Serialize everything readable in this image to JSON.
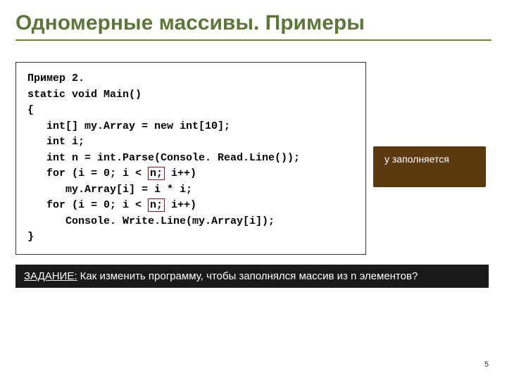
{
  "title": {
    "text": "Одномерные массивы. Примеры",
    "color": "#5d773a",
    "underline_color": "#6b8e23"
  },
  "callout": {
    "text": "у заполняется",
    "background_color": "#5b3a12"
  },
  "code": {
    "line1": "Пример 2.",
    "line2": "static void Main()",
    "line3": "{",
    "line4": "   int[] my.Array = new int[10];",
    "line5": "   int i;",
    "line6": "   int n = int.Parse(Console. Read.Line());",
    "line7a": "   for (i = 0; i < ",
    "line7_hl": "n;",
    "line7b": " i++)",
    "line8": "      my.Array[i] = i * i;",
    "line9a": "   for (i = 0; i < ",
    "line9_hl": "n;",
    "line9b": " i++)",
    "line10": "      Console. Write.Line(my.Array[i]);",
    "line11": "}",
    "highlight_color": "#8b1a1a"
  },
  "task": {
    "label": "ЗАДАНИЕ:",
    "text": " Как изменить программу, чтобы заполнялся массив из n элементов?",
    "background_color": "#1a1a1a"
  },
  "page_number": "5"
}
